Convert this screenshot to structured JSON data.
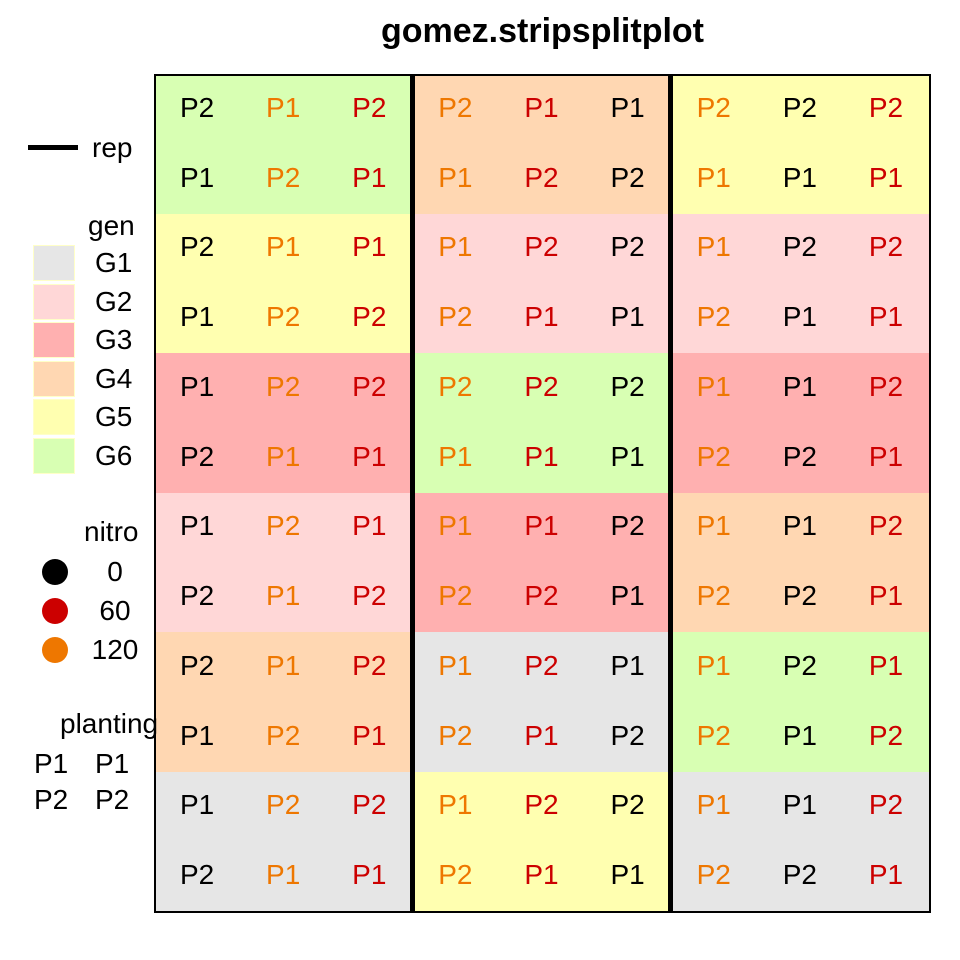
{
  "title": "gomez.stripsplitplot",
  "colors": {
    "gen": {
      "G1": "#e6e6e6",
      "G2": "#ffd7d7",
      "G3": "#ffb0b0",
      "G4": "#ffd7b2",
      "G5": "#ffffb0",
      "G6": "#d8ffb3"
    },
    "nitro": {
      "0": "#000000",
      "60": "#cc0000",
      "120": "#ee7700"
    }
  },
  "grid": {
    "cols": 9,
    "rows": 12,
    "rep_boundaries": [
      3,
      6
    ],
    "gen_blocks": [
      [
        "G6",
        "G4",
        "G5"
      ],
      [
        "G5",
        "G2",
        "G2"
      ],
      [
        "G3",
        "G6",
        "G3"
      ],
      [
        "G2",
        "G3",
        "G4"
      ],
      [
        "G4",
        "G1",
        "G6"
      ],
      [
        "G1",
        "G5",
        "G1"
      ]
    ],
    "cells": [
      [
        {
          "t": "P2",
          "n": "0"
        },
        {
          "t": "P1",
          "n": "120"
        },
        {
          "t": "P2",
          "n": "60"
        },
        {
          "t": "P2",
          "n": "120"
        },
        {
          "t": "P1",
          "n": "60"
        },
        {
          "t": "P1",
          "n": "0"
        },
        {
          "t": "P2",
          "n": "120"
        },
        {
          "t": "P2",
          "n": "0"
        },
        {
          "t": "P2",
          "n": "60"
        }
      ],
      [
        {
          "t": "P1",
          "n": "0"
        },
        {
          "t": "P2",
          "n": "120"
        },
        {
          "t": "P1",
          "n": "60"
        },
        {
          "t": "P1",
          "n": "120"
        },
        {
          "t": "P2",
          "n": "60"
        },
        {
          "t": "P2",
          "n": "0"
        },
        {
          "t": "P1",
          "n": "120"
        },
        {
          "t": "P1",
          "n": "0"
        },
        {
          "t": "P1",
          "n": "60"
        }
      ],
      [
        {
          "t": "P2",
          "n": "0"
        },
        {
          "t": "P1",
          "n": "120"
        },
        {
          "t": "P1",
          "n": "60"
        },
        {
          "t": "P1",
          "n": "120"
        },
        {
          "t": "P2",
          "n": "60"
        },
        {
          "t": "P2",
          "n": "0"
        },
        {
          "t": "P1",
          "n": "120"
        },
        {
          "t": "P2",
          "n": "0"
        },
        {
          "t": "P2",
          "n": "60"
        }
      ],
      [
        {
          "t": "P1",
          "n": "0"
        },
        {
          "t": "P2",
          "n": "120"
        },
        {
          "t": "P2",
          "n": "60"
        },
        {
          "t": "P2",
          "n": "120"
        },
        {
          "t": "P1",
          "n": "60"
        },
        {
          "t": "P1",
          "n": "0"
        },
        {
          "t": "P2",
          "n": "120"
        },
        {
          "t": "P1",
          "n": "0"
        },
        {
          "t": "P1",
          "n": "60"
        }
      ],
      [
        {
          "t": "P1",
          "n": "0"
        },
        {
          "t": "P2",
          "n": "120"
        },
        {
          "t": "P2",
          "n": "60"
        },
        {
          "t": "P2",
          "n": "120"
        },
        {
          "t": "P2",
          "n": "60"
        },
        {
          "t": "P2",
          "n": "0"
        },
        {
          "t": "P1",
          "n": "120"
        },
        {
          "t": "P1",
          "n": "0"
        },
        {
          "t": "P2",
          "n": "60"
        }
      ],
      [
        {
          "t": "P2",
          "n": "0"
        },
        {
          "t": "P1",
          "n": "120"
        },
        {
          "t": "P1",
          "n": "60"
        },
        {
          "t": "P1",
          "n": "120"
        },
        {
          "t": "P1",
          "n": "60"
        },
        {
          "t": "P1",
          "n": "0"
        },
        {
          "t": "P2",
          "n": "120"
        },
        {
          "t": "P2",
          "n": "0"
        },
        {
          "t": "P1",
          "n": "60"
        }
      ],
      [
        {
          "t": "P1",
          "n": "0"
        },
        {
          "t": "P2",
          "n": "120"
        },
        {
          "t": "P1",
          "n": "60"
        },
        {
          "t": "P1",
          "n": "120"
        },
        {
          "t": "P1",
          "n": "60"
        },
        {
          "t": "P2",
          "n": "0"
        },
        {
          "t": "P1",
          "n": "120"
        },
        {
          "t": "P1",
          "n": "0"
        },
        {
          "t": "P2",
          "n": "60"
        }
      ],
      [
        {
          "t": "P2",
          "n": "0"
        },
        {
          "t": "P1",
          "n": "120"
        },
        {
          "t": "P2",
          "n": "60"
        },
        {
          "t": "P2",
          "n": "120"
        },
        {
          "t": "P2",
          "n": "60"
        },
        {
          "t": "P1",
          "n": "0"
        },
        {
          "t": "P2",
          "n": "120"
        },
        {
          "t": "P2",
          "n": "0"
        },
        {
          "t": "P1",
          "n": "60"
        }
      ],
      [
        {
          "t": "P2",
          "n": "0"
        },
        {
          "t": "P1",
          "n": "120"
        },
        {
          "t": "P2",
          "n": "60"
        },
        {
          "t": "P1",
          "n": "120"
        },
        {
          "t": "P2",
          "n": "60"
        },
        {
          "t": "P1",
          "n": "0"
        },
        {
          "t": "P1",
          "n": "120"
        },
        {
          "t": "P2",
          "n": "0"
        },
        {
          "t": "P1",
          "n": "60"
        }
      ],
      [
        {
          "t": "P1",
          "n": "0"
        },
        {
          "t": "P2",
          "n": "120"
        },
        {
          "t": "P1",
          "n": "60"
        },
        {
          "t": "P2",
          "n": "120"
        },
        {
          "t": "P1",
          "n": "60"
        },
        {
          "t": "P2",
          "n": "0"
        },
        {
          "t": "P2",
          "n": "120"
        },
        {
          "t": "P1",
          "n": "0"
        },
        {
          "t": "P2",
          "n": "60"
        }
      ],
      [
        {
          "t": "P1",
          "n": "0"
        },
        {
          "t": "P2",
          "n": "120"
        },
        {
          "t": "P2",
          "n": "60"
        },
        {
          "t": "P1",
          "n": "120"
        },
        {
          "t": "P2",
          "n": "60"
        },
        {
          "t": "P2",
          "n": "0"
        },
        {
          "t": "P1",
          "n": "120"
        },
        {
          "t": "P1",
          "n": "0"
        },
        {
          "t": "P2",
          "n": "60"
        }
      ],
      [
        {
          "t": "P2",
          "n": "0"
        },
        {
          "t": "P1",
          "n": "120"
        },
        {
          "t": "P1",
          "n": "60"
        },
        {
          "t": "P2",
          "n": "120"
        },
        {
          "t": "P1",
          "n": "60"
        },
        {
          "t": "P1",
          "n": "0"
        },
        {
          "t": "P2",
          "n": "120"
        },
        {
          "t": "P2",
          "n": "0"
        },
        {
          "t": "P1",
          "n": "60"
        }
      ]
    ]
  },
  "legend": {
    "rep_label": "rep",
    "gen_title": "gen",
    "gen_items": [
      "G1",
      "G2",
      "G3",
      "G4",
      "G5",
      "G6"
    ],
    "nitro_title": "nitro",
    "nitro_items": [
      "0",
      "60",
      "120"
    ],
    "planting_title": "planting",
    "planting_items": [
      [
        "P1",
        "P1"
      ],
      [
        "P2",
        "P2"
      ]
    ]
  }
}
